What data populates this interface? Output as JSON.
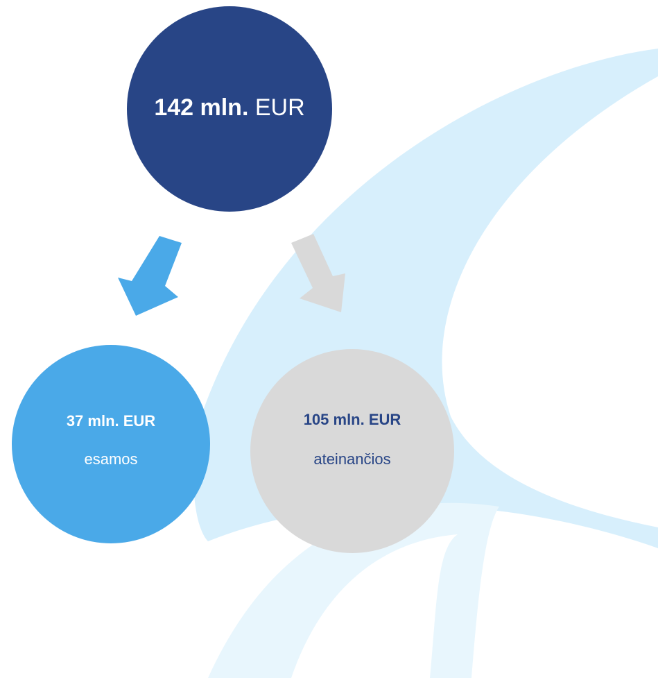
{
  "top": {
    "amount": "142 mln.",
    "unit": "EUR"
  },
  "nodes": [
    {
      "amount": "37 mln. EUR",
      "label": "esamos"
    },
    {
      "amount": "105 mln. EUR",
      "label": "ateinančios"
    }
  ]
}
